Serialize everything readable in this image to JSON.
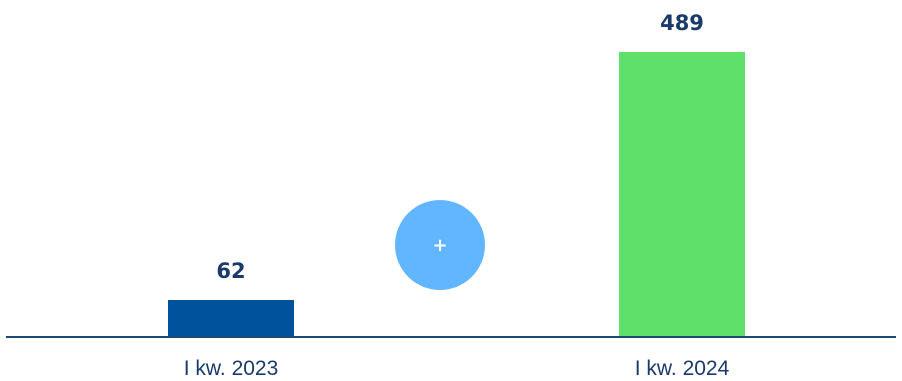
{
  "chart_data": {
    "type": "bar",
    "categories": [
      "I kw. 2023",
      "I kw. 2024"
    ],
    "values": [
      62,
      489
    ],
    "data_labels": [
      "62",
      "489"
    ],
    "colors": [
      "#00529c",
      "#5ee06b"
    ],
    "axis_color": "#1a4a7a",
    "ylim": [
      0,
      489
    ],
    "grid": false,
    "legend": "none",
    "title": "",
    "xlabel": "",
    "ylabel": ""
  },
  "change_indicator": {
    "symbol": "+",
    "color": "#62b5ff",
    "icon": "plus-icon"
  }
}
